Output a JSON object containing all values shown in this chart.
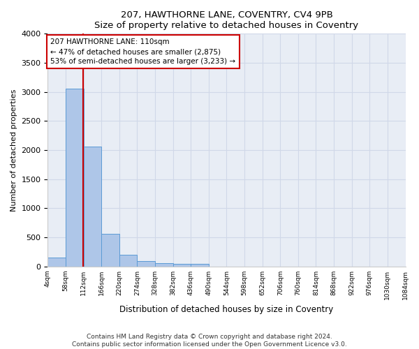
{
  "title1": "207, HAWTHORNE LANE, COVENTRY, CV4 9PB",
  "title2": "Size of property relative to detached houses in Coventry",
  "xlabel": "Distribution of detached houses by size in Coventry",
  "ylabel": "Number of detached properties",
  "bin_edges": [
    4,
    58,
    112,
    166,
    220,
    274,
    328,
    382,
    436,
    490,
    544,
    598,
    652,
    706,
    760,
    814,
    868,
    922,
    976,
    1030,
    1084
  ],
  "bar_heights": [
    150,
    3060,
    2060,
    560,
    200,
    90,
    60,
    50,
    50,
    0,
    0,
    0,
    0,
    0,
    0,
    0,
    0,
    0,
    0,
    0
  ],
  "bar_color": "#aec6e8",
  "bar_edge_color": "#5b9bd5",
  "property_size": 110,
  "property_line_color": "#cc0000",
  "annotation_text": "207 HAWTHORNE LANE: 110sqm\n← 47% of detached houses are smaller (2,875)\n53% of semi-detached houses are larger (3,233) →",
  "annotation_box_color": "#cc0000",
  "annotation_box_bg": "#ffffff",
  "ylim": [
    0,
    4000
  ],
  "xlim": [
    4,
    1084
  ],
  "grid_color": "#d0d8e8",
  "bg_color": "#e8edf5",
  "footer_line1": "Contains HM Land Registry data © Crown copyright and database right 2024.",
  "footer_line2": "Contains public sector information licensed under the Open Government Licence v3.0."
}
